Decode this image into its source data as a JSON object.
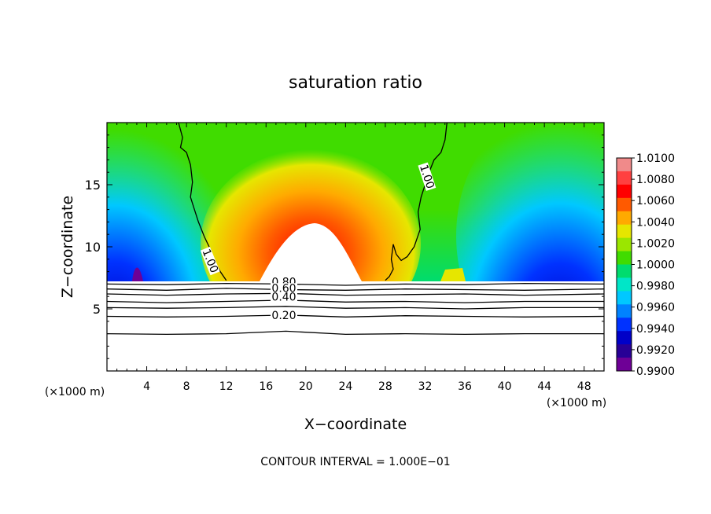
{
  "chart_data": {
    "type": "heatmap",
    "title": "saturation ratio",
    "xlabel": "X−coordinate",
    "ylabel": "Z−coordinate",
    "x_unit_left": "(×1000 m)",
    "x_unit_right": "(×1000 m)",
    "footer": "CONTOUR INTERVAL = 1.000E−01",
    "xlim": [
      0,
      50
    ],
    "ylim": [
      0,
      20
    ],
    "x_ticks": [
      4,
      8,
      12,
      16,
      20,
      24,
      28,
      32,
      36,
      40,
      44,
      48
    ],
    "y_ticks": [
      5,
      10,
      15
    ],
    "colorbar": {
      "labels": [
        "1.0100",
        "1.0080",
        "1.0060",
        "1.0040",
        "1.0020",
        "1.0000",
        "0.9980",
        "0.9960",
        "0.9940",
        "0.9920",
        "0.9900"
      ],
      "colors": [
        "#f08a8a",
        "#ff4040",
        "#ff0000",
        "#ff5a00",
        "#ffaa00",
        "#e6e600",
        "#9be600",
        "#40dc00",
        "#00dc6e",
        "#00e6c8",
        "#00c8ff",
        "#0082ff",
        "#0032ff",
        "#0000c8",
        "#280096",
        "#6e0096"
      ]
    },
    "contour_labels": [
      {
        "text": "1.00",
        "x": 10.2,
        "z": 8.8,
        "rot": 68
      },
      {
        "text": "1.00",
        "x": 32.0,
        "z": 15.6,
        "rot": 72
      },
      {
        "text": "0.80",
        "x": 17.8,
        "z": 7.0,
        "rot": 0
      },
      {
        "text": "0.60",
        "x": 17.8,
        "z": 6.5,
        "rot": 0
      },
      {
        "text": "0.40",
        "x": 17.8,
        "z": 5.8,
        "rot": 0
      },
      {
        "text": "0.20",
        "x": 17.8,
        "z": 4.3,
        "rot": 0
      }
    ],
    "contour_lines": [
      {
        "level": "1.00",
        "x": [
          7.2,
          7.6,
          7.4,
          8.0,
          8.4,
          8.6,
          8.4,
          8.8,
          9.2,
          9.8,
          10.4,
          10.8,
          11.4,
          12.0
        ],
        "z": [
          20.0,
          18.8,
          18.0,
          17.6,
          16.6,
          15.2,
          14.0,
          13.0,
          12.0,
          10.8,
          9.8,
          8.8,
          8.0,
          7.3
        ]
      },
      {
        "level": "1.00",
        "x": [
          34.2,
          34.0,
          33.6,
          32.9,
          32.4,
          32.0,
          31.6,
          31.3,
          31.5,
          30.9,
          30.2,
          29.6,
          29.1,
          28.8,
          28.6,
          28.8,
          28.4,
          28.0
        ],
        "z": [
          20.0,
          18.6,
          17.6,
          17.0,
          16.0,
          15.0,
          14.0,
          12.8,
          11.4,
          10.0,
          9.2,
          8.9,
          9.4,
          10.2,
          9.0,
          8.2,
          7.6,
          7.3
        ]
      },
      {
        "level": "0.80",
        "x": [
          0,
          6,
          12,
          18,
          24,
          30,
          36,
          42,
          50
        ],
        "z": [
          7.0,
          6.95,
          7.05,
          7.0,
          6.9,
          7.0,
          6.95,
          7.05,
          7.0
        ]
      },
      {
        "level": "0.60",
        "x": [
          0,
          6,
          12,
          18,
          24,
          30,
          36,
          42,
          50
        ],
        "z": [
          6.6,
          6.5,
          6.65,
          6.55,
          6.5,
          6.6,
          6.55,
          6.5,
          6.6
        ]
      },
      {
        "level": "0.50",
        "x": [
          0,
          6,
          12,
          18,
          24,
          30,
          36,
          42,
          50
        ],
        "z": [
          6.2,
          6.1,
          6.2,
          6.25,
          6.1,
          6.15,
          6.2,
          6.1,
          6.2
        ]
      },
      {
        "level": "0.40",
        "x": [
          0,
          6,
          12,
          18,
          24,
          30,
          36,
          42,
          50
        ],
        "z": [
          5.6,
          5.5,
          5.6,
          5.7,
          5.55,
          5.6,
          5.5,
          5.6,
          5.6
        ]
      },
      {
        "level": "0.30",
        "x": [
          0,
          6,
          12,
          18,
          24,
          30,
          36,
          42,
          50
        ],
        "z": [
          5.1,
          5.05,
          5.1,
          5.2,
          5.05,
          5.1,
          5.0,
          5.1,
          5.1
        ]
      },
      {
        "level": "0.20",
        "x": [
          0,
          6,
          12,
          18,
          24,
          30,
          36,
          42,
          50
        ],
        "z": [
          4.4,
          4.35,
          4.4,
          4.5,
          4.35,
          4.45,
          4.4,
          4.35,
          4.4
        ]
      },
      {
        "level": "0.10",
        "x": [
          0,
          6,
          12,
          18,
          24,
          30,
          36,
          42,
          50
        ],
        "z": [
          3.0,
          2.95,
          3.0,
          3.2,
          2.95,
          3.0,
          2.95,
          3.0,
          3.0
        ]
      }
    ]
  }
}
